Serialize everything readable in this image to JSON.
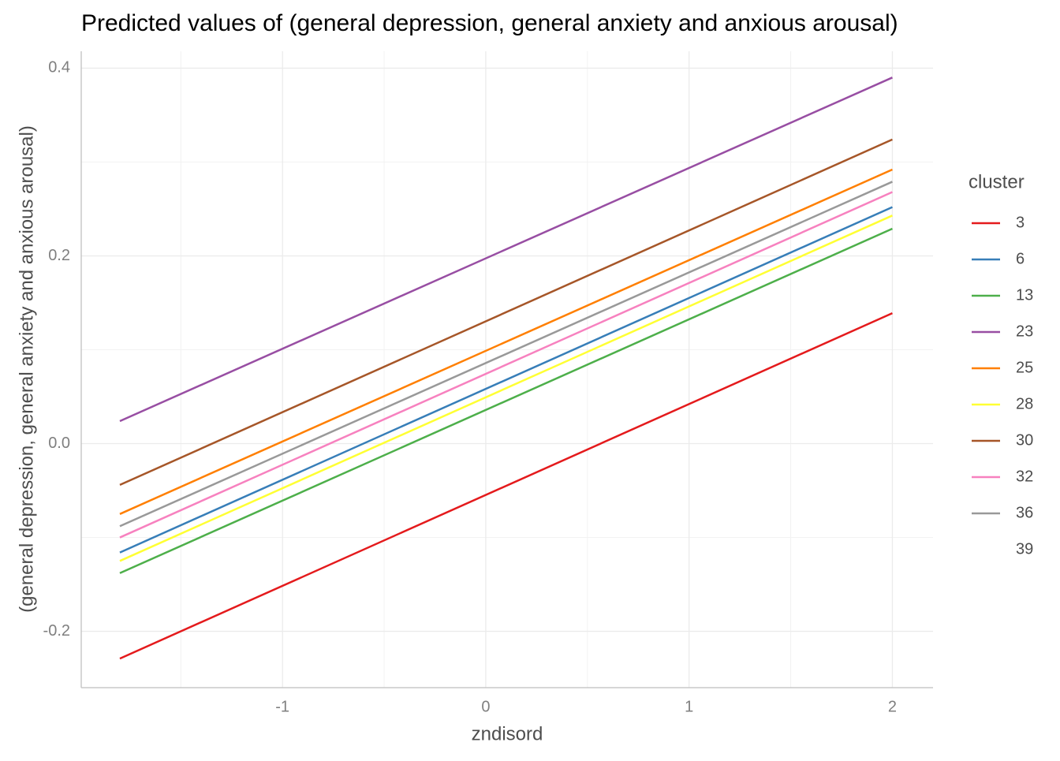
{
  "chart_data": {
    "type": "line",
    "title": "Predicted values of (general depression, general anxiety and anxious arousal)",
    "x_label": "zndisord",
    "y_label": "(general depression, general anxiety and anxious arousal)",
    "legend_title": "cluster",
    "legend_position": "right",
    "grid": true,
    "x": [
      -1.8,
      2.0
    ],
    "xlim": [
      -1.99,
      2.2
    ],
    "ylim": [
      -0.26,
      0.418
    ],
    "xticks": [
      -1,
      0,
      1,
      2
    ],
    "yticks": [
      -0.2,
      {
        "value": 0,
        "label": "0.0"
      },
      0.2,
      0.4
    ],
    "x_minor_ticks": [
      -1.5,
      -0.5,
      0.5,
      1.5
    ],
    "y_minor_ticks": [
      -0.1,
      0.1,
      0.3
    ],
    "series": [
      {
        "name": "3",
        "color": "#e41a1c",
        "values": [
          -0.229,
          0.139
        ]
      },
      {
        "name": "6",
        "color": "#377eb8",
        "values": [
          -0.116,
          0.252
        ]
      },
      {
        "name": "13",
        "color": "#4daf4a",
        "values": [
          -0.138,
          0.229
        ]
      },
      {
        "name": "23",
        "color": "#984ea3",
        "values": [
          0.024,
          0.39
        ]
      },
      {
        "name": "25",
        "color": "#ff7f00",
        "values": [
          -0.075,
          0.292
        ]
      },
      {
        "name": "28",
        "color": "#ffff33",
        "values": [
          -0.125,
          0.243
        ]
      },
      {
        "name": "30",
        "color": "#a65628",
        "values": [
          -0.044,
          0.324
        ]
      },
      {
        "name": "32",
        "color": "#f781bf",
        "values": [
          -0.1,
          0.268
        ]
      },
      {
        "name": "36",
        "color": "#999999",
        "values": [
          -0.088,
          0.279
        ]
      },
      {
        "name": "39",
        "values": [
          null,
          null
        ]
      }
    ]
  }
}
